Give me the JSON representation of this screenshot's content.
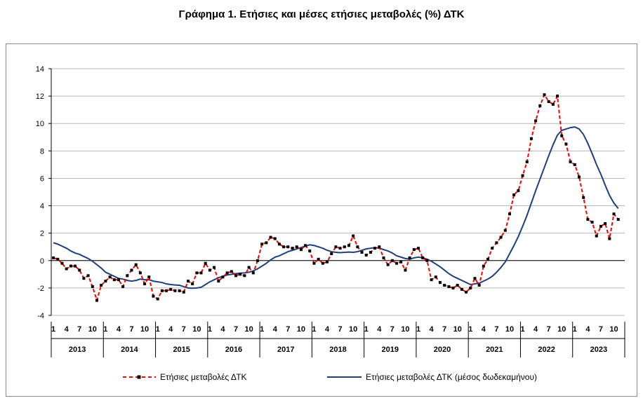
{
  "chart_data": {
    "type": "line",
    "title": "Γράφημα 1. Ετήσιες και μέσες ετήσιες μεταβολές (%) ΔΤΚ",
    "ylim": [
      -4,
      14
    ],
    "yticks": [
      -4,
      -2,
      0,
      2,
      4,
      6,
      8,
      10,
      12,
      14
    ],
    "years": [
      "2013",
      "2014",
      "2015",
      "2016",
      "2017",
      "2018",
      "2019",
      "2020",
      "2021",
      "2022",
      "2023"
    ],
    "month_ticks": [
      "1",
      "4",
      "7",
      "10"
    ],
    "grid": "horizontal",
    "legend_position": "bottom",
    "colors": {
      "annual": "#ff0000",
      "average": "#1f3f7a",
      "marker": "#000000"
    },
    "series": [
      {
        "name": "Ετήσιες μεταβολές ΔΤΚ",
        "style": "dashed-markers",
        "values": [
          0.2,
          0.1,
          -0.2,
          -0.6,
          -0.4,
          -0.4,
          -0.7,
          -1.3,
          -1.1,
          -1.9,
          -2.9,
          -1.8,
          -1.5,
          -1.2,
          -1.4,
          -1.4,
          -1.9,
          -1.1,
          -0.7,
          -0.3,
          -0.9,
          -1.7,
          -1.2,
          -2.6,
          -2.8,
          -2.2,
          -2.2,
          -2.1,
          -2.2,
          -2.2,
          -2.3,
          -1.5,
          -1.7,
          -0.9,
          -0.9,
          -0.2,
          -0.7,
          -0.5,
          -1.5,
          -1.2,
          -0.9,
          -0.8,
          -1.1,
          -1.0,
          -1.1,
          -0.5,
          -0.9,
          0.0,
          1.2,
          1.3,
          1.7,
          1.6,
          1.2,
          1.0,
          1.0,
          0.9,
          1.0,
          0.8,
          1.1,
          0.7,
          -0.2,
          0.1,
          -0.2,
          -0.1,
          0.5,
          1.0,
          0.9,
          1.0,
          1.1,
          1.8,
          1.0,
          0.6,
          0.4,
          0.6,
          0.9,
          1.0,
          0.2,
          -0.3,
          0.0,
          -0.2,
          -0.1,
          -0.7,
          0.2,
          0.8,
          0.9,
          0.2,
          0.0,
          -1.4,
          -1.2,
          -1.6,
          -1.8,
          -1.9,
          -2.0,
          -1.8,
          -2.1,
          -2.3,
          -2.0,
          -1.3,
          -1.8,
          -0.4,
          0.1,
          0.9,
          1.3,
          1.7,
          2.2,
          3.4,
          4.8,
          5.1,
          6.2,
          7.2,
          8.9,
          10.2,
          11.3,
          12.1,
          11.6,
          11.4,
          12.0,
          9.1,
          8.5,
          7.2,
          7.0,
          6.1,
          4.6,
          3.0,
          2.8,
          1.8,
          2.5,
          2.7,
          1.6,
          3.4,
          3.0
        ]
      },
      {
        "name": "Ετήσιες μεταβολές ΔΤΚ (μέσος δωδεκαμήνου)",
        "style": "solid",
        "values": [
          1.3,
          1.2,
          1.05,
          0.9,
          0.7,
          0.55,
          0.45,
          0.3,
          0.15,
          -0.05,
          -0.3,
          -0.55,
          -0.85,
          -1.0,
          -1.15,
          -1.3,
          -1.35,
          -1.45,
          -1.5,
          -1.45,
          -1.35,
          -1.4,
          -1.4,
          -1.5,
          -1.55,
          -1.6,
          -1.7,
          -1.75,
          -1.78,
          -1.8,
          -1.9,
          -2.0,
          -2.02,
          -2.0,
          -1.95,
          -1.75,
          -1.55,
          -1.4,
          -1.25,
          -1.15,
          -1.05,
          -1.0,
          -0.95,
          -0.92,
          -0.9,
          -0.85,
          -0.75,
          -0.6,
          -0.4,
          -0.2,
          0.05,
          0.25,
          0.35,
          0.5,
          0.65,
          0.75,
          0.85,
          0.95,
          1.05,
          1.15,
          1.1,
          1.0,
          0.9,
          0.75,
          0.65,
          0.6,
          0.58,
          0.6,
          0.62,
          0.6,
          0.65,
          0.75,
          0.85,
          0.9,
          0.95,
          0.9,
          0.8,
          0.7,
          0.55,
          0.35,
          0.25,
          0.15,
          0.1,
          0.2,
          0.25,
          0.2,
          0.1,
          -0.05,
          -0.25,
          -0.45,
          -0.7,
          -0.95,
          -1.15,
          -1.3,
          -1.45,
          -1.6,
          -1.75,
          -1.7,
          -1.65,
          -1.5,
          -1.35,
          -1.15,
          -0.85,
          -0.5,
          -0.1,
          0.5,
          1.1,
          1.75,
          2.5,
          3.3,
          4.2,
          5.1,
          5.95,
          6.8,
          7.65,
          8.45,
          9.15,
          9.5,
          9.6,
          9.7,
          9.75,
          9.6,
          9.2,
          8.55,
          7.8,
          7.0,
          6.3,
          5.5,
          4.75,
          4.2,
          3.8
        ]
      }
    ]
  }
}
